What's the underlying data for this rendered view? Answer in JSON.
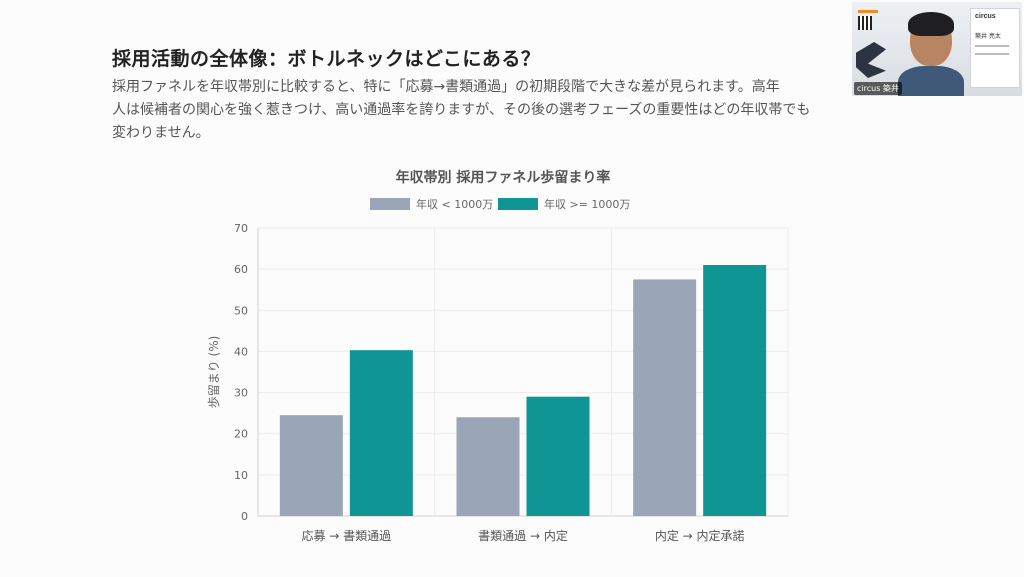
{
  "slide": {
    "title": "採用活動の全体像：ボトルネックはどこにある？",
    "subtitle_line1": "採用ファネルを年収帯別に比較すると、特に「応募→書類通過」の初期段階で大きな差が見られます。高年",
    "subtitle_line2": "人は候補者の関心を強く惹きつけ、高い通過率を誇りますが、その後の選考フェーズの重要性はどの年収帯でも",
    "subtitle_line3": "変わりません。"
  },
  "video": {
    "label": "circus 築井",
    "card_brand": "circus",
    "card_name": "築井 亮太"
  },
  "colors": {
    "series1": "#9aa5b8",
    "series2": "#0e9594"
  },
  "chart_data": {
    "type": "bar",
    "title": "年収帯別 採用ファネル歩留まり率",
    "ylabel": "歩留まり (%)",
    "xlabel": "",
    "categories": [
      "応募 → 書類通過",
      "書類通過 → 内定",
      "内定 → 内定承諾"
    ],
    "ylim": [
      0,
      70
    ],
    "yticks": [
      0,
      10,
      20,
      30,
      40,
      50,
      60,
      70
    ],
    "grid": true,
    "legend": "top-center",
    "series": [
      {
        "name": "年収 < 1000万",
        "values": [
          24.5,
          24,
          57.5
        ]
      },
      {
        "name": "年収 >= 1000万",
        "values": [
          40.3,
          29,
          61
        ]
      }
    ]
  }
}
